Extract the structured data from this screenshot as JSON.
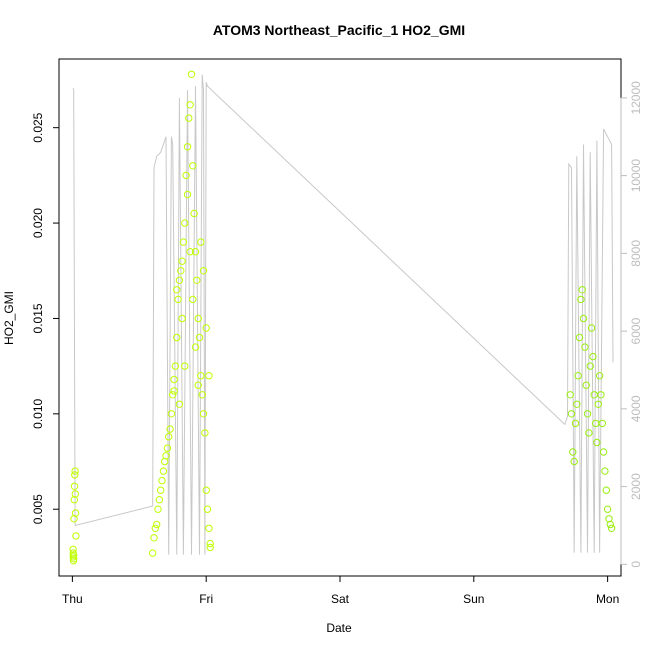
{
  "chart_data": {
    "type": "scatter",
    "title": "ATOM3 Northeast_Pacific_1 HO2_GMI",
    "xlabel": "Date",
    "ylabel": "HO2_GMI",
    "x_ticks": [
      "Thu",
      "Fri",
      "Sat",
      "Sun",
      "Mon"
    ],
    "x_range_days": [
      -0.1,
      4.1
    ],
    "ylim": [
      0.0015,
      0.0286
    ],
    "y_ticks": [
      0.005,
      0.01,
      0.015,
      0.02,
      0.025
    ],
    "y_tick_labels": [
      "0.005",
      "0.010",
      "0.015",
      "0.020",
      "0.025"
    ],
    "y2lim": [
      -300,
      13000
    ],
    "y2_ticks": [
      0,
      2000,
      4000,
      6000,
      8000,
      10000,
      12000
    ],
    "y2_tick_labels": [
      "0",
      "2000",
      "4000",
      "6000",
      "8000",
      "10000",
      "12000"
    ],
    "colors": {
      "points_day1": "#bfff00",
      "points_day4": "#99ee11",
      "altitude_line": "#c8c8c8",
      "frame": "#000000"
    },
    "series": [
      {
        "kind": "points",
        "axis": "left",
        "points": [
          [
            0.005,
            0.0029
          ],
          [
            0.006,
            0.0027
          ],
          [
            0.007,
            0.0025
          ],
          [
            0.008,
            0.0023
          ],
          [
            0.009,
            0.0026
          ],
          [
            0.01,
            0.0024
          ],
          [
            0.012,
            0.0045
          ],
          [
            0.014,
            0.0055
          ],
          [
            0.016,
            0.0062
          ],
          [
            0.018,
            0.0068
          ],
          [
            0.02,
            0.007
          ],
          [
            0.022,
            0.0058
          ],
          [
            0.024,
            0.0048
          ],
          [
            0.026,
            0.0036
          ],
          [
            0.6,
            0.0027
          ],
          [
            0.61,
            0.0035
          ],
          [
            0.62,
            0.004
          ],
          [
            0.63,
            0.0042
          ],
          [
            0.64,
            0.005
          ],
          [
            0.65,
            0.0055
          ],
          [
            0.66,
            0.006
          ],
          [
            0.67,
            0.0065
          ],
          [
            0.68,
            0.007
          ],
          [
            0.69,
            0.0075
          ],
          [
            0.7,
            0.0078
          ],
          [
            0.71,
            0.0082
          ],
          [
            0.72,
            0.0088
          ],
          [
            0.73,
            0.0092
          ],
          [
            0.74,
            0.01
          ],
          [
            0.75,
            0.011
          ],
          [
            0.76,
            0.0118
          ],
          [
            0.77,
            0.0125
          ],
          [
            0.78,
            0.014
          ],
          [
            0.79,
            0.016
          ],
          [
            0.8,
            0.017
          ],
          [
            0.81,
            0.0175
          ],
          [
            0.82,
            0.018
          ],
          [
            0.83,
            0.019
          ],
          [
            0.84,
            0.02
          ],
          [
            0.85,
            0.0225
          ],
          [
            0.86,
            0.024
          ],
          [
            0.87,
            0.0255
          ],
          [
            0.88,
            0.0262
          ],
          [
            0.89,
            0.0278
          ],
          [
            0.9,
            0.023
          ],
          [
            0.91,
            0.0205
          ],
          [
            0.92,
            0.0185
          ],
          [
            0.93,
            0.017
          ],
          [
            0.94,
            0.015
          ],
          [
            0.95,
            0.014
          ],
          [
            0.96,
            0.012
          ],
          [
            0.97,
            0.011
          ],
          [
            0.98,
            0.01
          ],
          [
            0.99,
            0.009
          ],
          [
            1.0,
            0.006
          ],
          [
            1.01,
            0.005
          ],
          [
            1.02,
            0.004
          ],
          [
            1.03,
            0.0032
          ],
          [
            0.76,
            0.0112
          ],
          [
            0.78,
            0.0165
          ],
          [
            0.8,
            0.0105
          ],
          [
            0.82,
            0.015
          ],
          [
            0.84,
            0.0125
          ],
          [
            0.86,
            0.0215
          ],
          [
            0.88,
            0.0185
          ],
          [
            0.9,
            0.016
          ],
          [
            0.92,
            0.0135
          ],
          [
            0.94,
            0.0115
          ],
          [
            0.96,
            0.019
          ],
          [
            0.98,
            0.0175
          ],
          [
            1.0,
            0.0145
          ],
          [
            1.02,
            0.012
          ],
          [
            1.03,
            0.003
          ],
          [
            3.72,
            0.011
          ],
          [
            3.73,
            0.01
          ],
          [
            3.74,
            0.008
          ],
          [
            3.75,
            0.0075
          ],
          [
            3.76,
            0.0095
          ],
          [
            3.77,
            0.0105
          ],
          [
            3.78,
            0.012
          ],
          [
            3.79,
            0.014
          ],
          [
            3.8,
            0.016
          ],
          [
            3.81,
            0.0165
          ],
          [
            3.82,
            0.015
          ],
          [
            3.83,
            0.0135
          ],
          [
            3.84,
            0.0115
          ],
          [
            3.85,
            0.01
          ],
          [
            3.86,
            0.009
          ],
          [
            3.87,
            0.0125
          ],
          [
            3.88,
            0.0145
          ],
          [
            3.89,
            0.013
          ],
          [
            3.9,
            0.011
          ],
          [
            3.91,
            0.0095
          ],
          [
            3.92,
            0.0085
          ],
          [
            3.93,
            0.0105
          ],
          [
            3.94,
            0.012
          ],
          [
            3.95,
            0.011
          ],
          [
            3.96,
            0.0095
          ],
          [
            3.97,
            0.008
          ],
          [
            3.98,
            0.007
          ],
          [
            3.99,
            0.006
          ],
          [
            4.0,
            0.005
          ],
          [
            4.01,
            0.0045
          ],
          [
            4.02,
            0.0042
          ],
          [
            4.03,
            0.004
          ]
        ]
      },
      {
        "kind": "line",
        "axis": "right",
        "name": "",
        "points": [
          [
            0.005,
            12250
          ],
          [
            0.01,
            12200
          ],
          [
            0.02,
            1000
          ],
          [
            0.6,
            1500
          ],
          [
            0.61,
            10200
          ],
          [
            0.63,
            10500
          ],
          [
            0.66,
            10600
          ],
          [
            0.7,
            11000
          ],
          [
            0.72,
            250
          ],
          [
            0.74,
            11000
          ],
          [
            0.75,
            10800
          ],
          [
            0.78,
            250
          ],
          [
            0.8,
            12000
          ],
          [
            0.83,
            250
          ],
          [
            0.86,
            12200
          ],
          [
            0.89,
            250
          ],
          [
            0.92,
            12300
          ],
          [
            0.95,
            250
          ],
          [
            0.97,
            12600
          ],
          [
            0.98,
            12200
          ],
          [
            0.99,
            250
          ],
          [
            1.0,
            12400
          ],
          [
            1.01,
            12300
          ],
          [
            3.68,
            3600
          ],
          [
            3.7,
            3800
          ],
          [
            3.71,
            10300
          ],
          [
            3.73,
            10200
          ],
          [
            3.75,
            300
          ],
          [
            3.77,
            10500
          ],
          [
            3.8,
            300
          ],
          [
            3.82,
            10800
          ],
          [
            3.85,
            300
          ],
          [
            3.87,
            10600
          ],
          [
            3.9,
            300
          ],
          [
            3.92,
            10900
          ],
          [
            3.94,
            300
          ],
          [
            3.97,
            11200
          ],
          [
            4.0,
            11000
          ],
          [
            4.03,
            10800
          ],
          [
            4.04,
            5200
          ]
        ]
      }
    ]
  }
}
